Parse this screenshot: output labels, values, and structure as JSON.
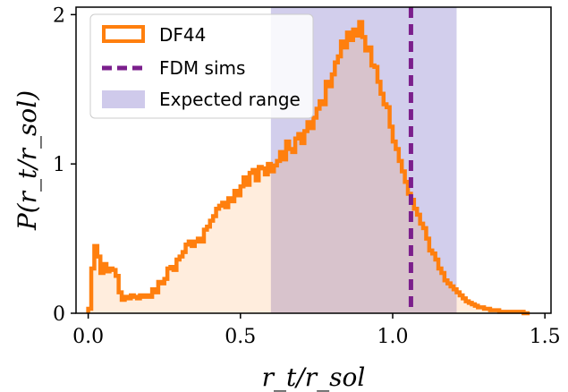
{
  "chart_data": {
    "type": "histogram",
    "xlabel": "r_t/r_sol",
    "ylabel": "P(r_t/r_sol)",
    "xlim": [
      -0.04,
      1.52
    ],
    "ylim": [
      0,
      2.05
    ],
    "xticks": [
      "0.0",
      "0.5",
      "1.0",
      "1.5"
    ],
    "yticks": [
      "0",
      "1",
      "2"
    ],
    "legend": {
      "placement": "top-left",
      "entries": [
        {
          "label": "DF44",
          "kind": "histogram",
          "color": "#ff7f0e"
        },
        {
          "label": "FDM sims",
          "kind": "dashed-line",
          "color": "#7b1f8c"
        },
        {
          "label": "Expected range",
          "kind": "band",
          "color": "#c3bde6"
        }
      ]
    },
    "expected_range": [
      0.6,
      1.21
    ],
    "fdm_sims_value": 1.06,
    "series": [
      {
        "name": "DF44",
        "color": "#ff7f0e",
        "fill": "#fdeee0",
        "x": [
          0.0,
          0.01,
          0.02,
          0.03,
          0.04,
          0.05,
          0.06,
          0.07,
          0.08,
          0.09,
          0.1,
          0.11,
          0.12,
          0.13,
          0.14,
          0.15,
          0.16,
          0.17,
          0.18,
          0.19,
          0.2,
          0.21,
          0.22,
          0.23,
          0.24,
          0.25,
          0.26,
          0.27,
          0.28,
          0.29,
          0.3,
          0.31,
          0.32,
          0.33,
          0.34,
          0.35,
          0.36,
          0.37,
          0.38,
          0.39,
          0.4,
          0.41,
          0.42,
          0.43,
          0.44,
          0.45,
          0.46,
          0.47,
          0.48,
          0.49,
          0.5,
          0.51,
          0.52,
          0.53,
          0.54,
          0.55,
          0.56,
          0.57,
          0.58,
          0.59,
          0.6,
          0.61,
          0.62,
          0.63,
          0.64,
          0.65,
          0.66,
          0.67,
          0.68,
          0.69,
          0.7,
          0.71,
          0.72,
          0.73,
          0.74,
          0.75,
          0.76,
          0.77,
          0.78,
          0.79,
          0.8,
          0.81,
          0.82,
          0.83,
          0.84,
          0.85,
          0.86,
          0.87,
          0.88,
          0.89,
          0.9,
          0.91,
          0.92,
          0.93,
          0.94,
          0.95,
          0.96,
          0.97,
          0.98,
          0.99,
          1.0,
          1.01,
          1.02,
          1.03,
          1.04,
          1.05,
          1.06,
          1.07,
          1.08,
          1.09,
          1.1,
          1.11,
          1.12,
          1.13,
          1.14,
          1.15,
          1.16,
          1.17,
          1.18,
          1.19,
          1.2,
          1.21,
          1.22,
          1.23,
          1.24,
          1.25,
          1.26,
          1.27,
          1.28,
          1.29,
          1.3,
          1.31,
          1.32,
          1.33,
          1.34,
          1.35,
          1.36,
          1.37,
          1.38,
          1.39,
          1.4,
          1.41,
          1.42,
          1.43,
          1.44
        ],
        "values": [
          0.03,
          0.3,
          0.45,
          0.38,
          0.27,
          0.33,
          0.28,
          0.3,
          0.29,
          0.25,
          0.14,
          0.09,
          0.11,
          0.1,
          0.12,
          0.11,
          0.1,
          0.12,
          0.11,
          0.12,
          0.11,
          0.16,
          0.14,
          0.21,
          0.2,
          0.23,
          0.3,
          0.31,
          0.29,
          0.36,
          0.38,
          0.41,
          0.46,
          0.48,
          0.45,
          0.48,
          0.5,
          0.48,
          0.56,
          0.58,
          0.62,
          0.65,
          0.7,
          0.72,
          0.74,
          0.71,
          0.77,
          0.75,
          0.82,
          0.79,
          0.85,
          0.91,
          0.86,
          0.94,
          0.96,
          0.89,
          0.98,
          0.97,
          0.93,
          1.0,
          0.95,
          0.99,
          1.02,
          1.08,
          1.03,
          1.15,
          1.1,
          1.08,
          1.17,
          1.2,
          1.14,
          1.22,
          1.28,
          1.24,
          1.31,
          1.37,
          1.42,
          1.4,
          1.55,
          1.52,
          1.6,
          1.68,
          1.72,
          1.82,
          1.78,
          1.88,
          1.83,
          1.9,
          1.86,
          1.95,
          1.85,
          1.76,
          1.78,
          1.66,
          1.65,
          1.55,
          1.47,
          1.4,
          1.38,
          1.25,
          1.15,
          1.1,
          1.02,
          0.95,
          0.88,
          0.8,
          0.76,
          0.7,
          0.66,
          0.6,
          0.57,
          0.5,
          0.42,
          0.4,
          0.36,
          0.3,
          0.27,
          0.22,
          0.2,
          0.18,
          0.16,
          0.14,
          0.12,
          0.1,
          0.08,
          0.07,
          0.06,
          0.05,
          0.04,
          0.04,
          0.03,
          0.03,
          0.02,
          0.02,
          0.02,
          0.01,
          0.01,
          0.01,
          0.01,
          0.01,
          0.01,
          0.01,
          0.01,
          0.0,
          0.0
        ]
      }
    ]
  },
  "legend_labels": {
    "df44": "DF44",
    "fdm": "FDM sims",
    "band": "Expected range"
  }
}
